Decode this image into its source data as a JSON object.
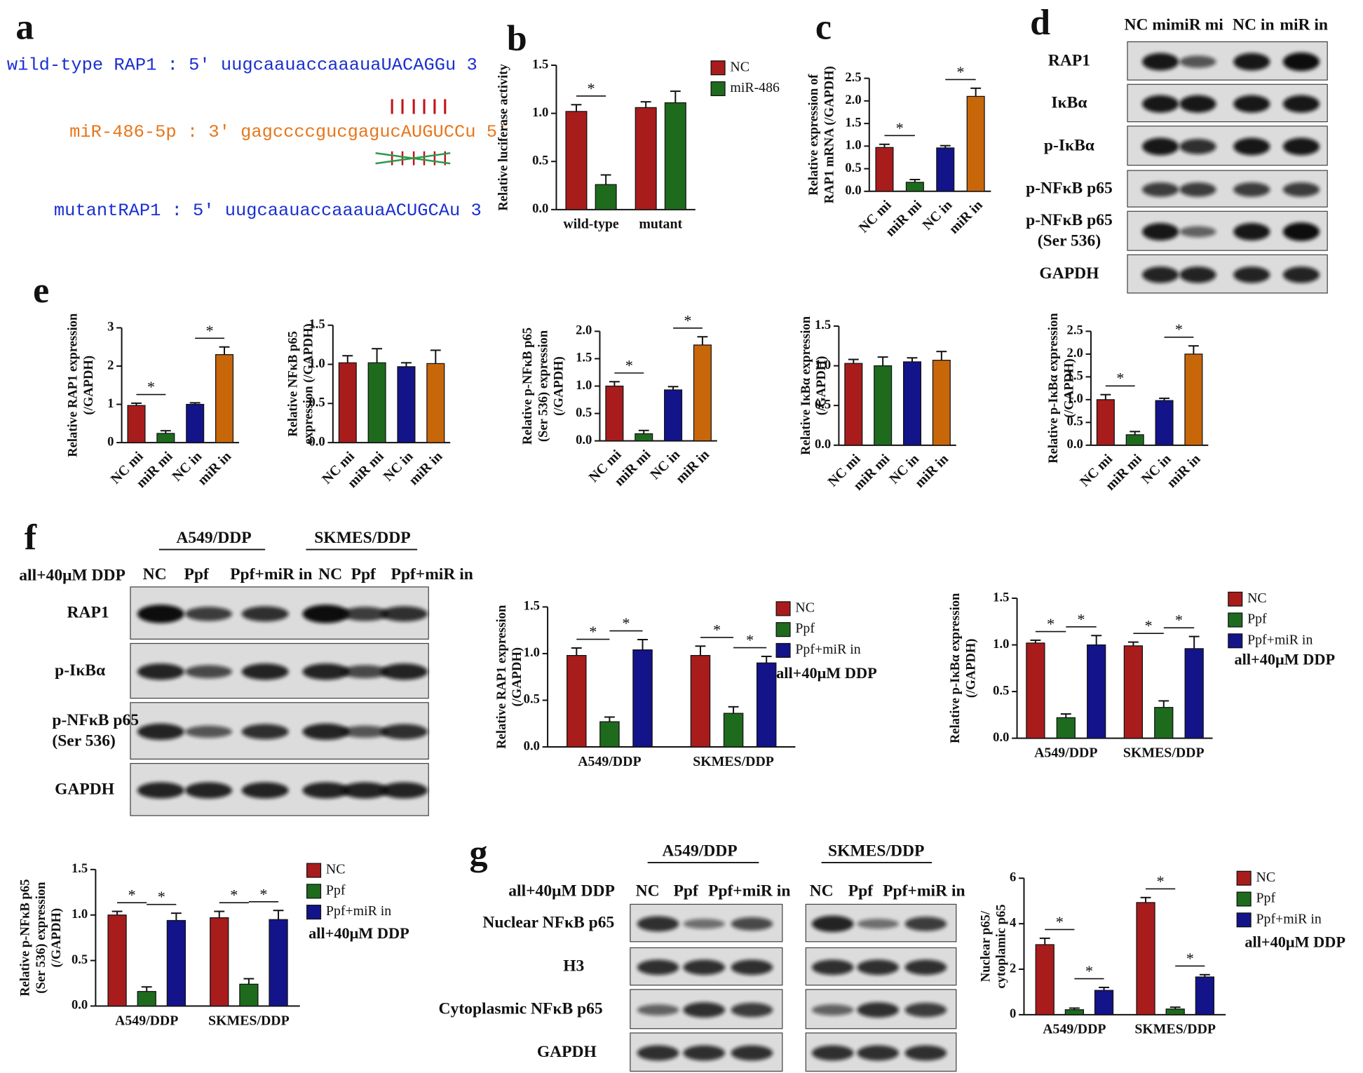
{
  "panel_labels": [
    "a",
    "b",
    "c",
    "d",
    "e",
    "f",
    "g"
  ],
  "sequences": [
    "wild-type RAP1 : 5' uugcaauaccaaauaUACAGGu 3",
    "miR-486-5p : 3' gagccccgucgagucAUGUCCu 5'",
    "mutantRAP1 : 5' uugcaauaccaaauaACUGCAu 3"
  ],
  "blots": [
    {
      "lanes": [
        "NC mi",
        "miR mi",
        "NC in",
        "miR in"
      ],
      "rows": [
        [
          "RAP1"
        ],
        [
          "IκBα"
        ],
        [
          "p-IκBα"
        ],
        [
          "p-NFκB p65"
        ],
        [
          "p-NFκB p65",
          "(Ser 536)"
        ],
        [
          "GAPDH"
        ]
      ]
    },
    {
      "groups": [
        "A549/DDP",
        "SKMES/DDP"
      ],
      "condition": "all+40μM DDP",
      "lanes": [
        "NC",
        "Ppf",
        "Ppf+miR in",
        "NC",
        "Ppf",
        "Ppf+miR in"
      ],
      "rows": [
        [
          "RAP1"
        ],
        [
          "p-IκBα"
        ],
        [
          "p-NFκB p65",
          "(Ser 536)"
        ],
        [
          "GAPDH"
        ]
      ]
    },
    {
      "groups": [
        "A549/DDP",
        "SKMES/DDP"
      ],
      "condition": "all+40μM DDP",
      "lanes": [
        "NC",
        "Ppf",
        "Ppf+miR in",
        "NC",
        "Ppf",
        "Ppf+miR in"
      ],
      "rows": [
        [
          "Nuclear NFκB p65"
        ],
        [
          "H3"
        ],
        [
          "Cytoplasmic NFκB p65"
        ],
        [
          "GAPDH"
        ]
      ]
    }
  ],
  "chart_data": [
    {
      "type": "bar",
      "categories": [
        "wild-type",
        "mutant"
      ],
      "series": [
        {
          "name": "NC",
          "color": "#a81c1c",
          "values": [
            1.02,
            1.06
          ],
          "errors": [
            0.07,
            0.06
          ]
        },
        {
          "name": "miR-486",
          "color": "#1e6b1e",
          "values": [
            0.26,
            1.11
          ],
          "errors": [
            0.1,
            0.12
          ]
        }
      ],
      "ylabel": [
        "Relative luciferase activity"
      ],
      "ylim": [
        0,
        1.5
      ],
      "yticks": [
        {
          "value": 0,
          "label": "0.0"
        },
        {
          "value": 0.5,
          "label": "0.5"
        },
        {
          "value": 1,
          "label": "1.0"
        },
        {
          "value": 1.5,
          "label": "1.5"
        }
      ],
      "significance": [
        "*"
      ]
    },
    {
      "type": "bar",
      "categories": [
        "NC mi",
        "miR mi",
        "NC in",
        "miR in"
      ],
      "values": [
        0.97,
        0.2,
        0.96,
        2.1
      ],
      "errors": [
        0.07,
        0.06,
        0.05,
        0.18
      ],
      "colors": [
        "#a81c1c",
        "#1e6b1e",
        "#13138a",
        "#c8670a"
      ],
      "ylabel": [
        "Relative expression of",
        "RAP1 mRNA (/GAPDH)"
      ],
      "ylim": [
        0,
        2.5
      ],
      "yticks": [
        {
          "value": 0,
          "label": "0.0"
        },
        {
          "value": 0.5,
          "label": "0.5"
        },
        {
          "value": 1,
          "label": "1.0"
        },
        {
          "value": 1.5,
          "label": "1.5"
        },
        {
          "value": 2,
          "label": "2.0"
        },
        {
          "value": 2.5,
          "label": "2.5"
        }
      ],
      "significance": [
        "*",
        "*"
      ]
    },
    {
      "type": "bar",
      "categories": [
        "NC mi",
        "miR mi",
        "NC in",
        "miR in"
      ],
      "values": [
        0.97,
        0.24,
        1.0,
        2.3
      ],
      "errors": [
        0.06,
        0.07,
        0.04,
        0.2
      ],
      "colors": [
        "#a81c1c",
        "#1e6b1e",
        "#13138a",
        "#c8670a"
      ],
      "ylabel": [
        "Relative RAP1 expression",
        "(/GAPDH)"
      ],
      "ylim": [
        0,
        3
      ],
      "yticks": [
        0,
        1,
        2,
        3
      ],
      "significance": [
        "*",
        "*"
      ]
    },
    {
      "type": "bar",
      "categories": [
        "NC mi",
        "miR mi",
        "NC in",
        "miR in"
      ],
      "values": [
        1.02,
        1.02,
        0.97,
        1.01
      ],
      "errors": [
        0.09,
        0.18,
        0.05,
        0.17
      ],
      "colors": [
        "#a81c1c",
        "#1e6b1e",
        "#13138a",
        "#c8670a"
      ],
      "ylabel": [
        "Relative NFκB p65",
        "expression (/GAPDH)"
      ],
      "ylim": [
        0,
        1.5
      ],
      "yticks": [
        {
          "value": 0,
          "label": "0.0"
        },
        {
          "value": 0.5,
          "label": "0.5"
        },
        {
          "value": 1,
          "label": "1.0"
        },
        {
          "value": 1.5,
          "label": "1.5"
        }
      ]
    },
    {
      "type": "bar",
      "categories": [
        "NC mi",
        "miR mi",
        "NC in",
        "miR in"
      ],
      "values": [
        1.0,
        0.13,
        0.93,
        1.75
      ],
      "errors": [
        0.08,
        0.06,
        0.06,
        0.15
      ],
      "colors": [
        "#a81c1c",
        "#1e6b1e",
        "#13138a",
        "#c8670a"
      ],
      "ylabel": [
        "Relative p-NFκB p65",
        "(Ser 536) expression",
        "(/GAPDH)"
      ],
      "ylim": [
        0,
        2
      ],
      "yticks": [
        {
          "value": 0,
          "label": "0.0"
        },
        {
          "value": 0.5,
          "label": "0.5"
        },
        {
          "value": 1,
          "label": "1.0"
        },
        {
          "value": 1.5,
          "label": "1.5"
        },
        {
          "value": 2,
          "label": "2.0"
        }
      ],
      "significance": [
        "*",
        "*"
      ]
    },
    {
      "type": "bar",
      "categories": [
        "NC mi",
        "miR mi",
        "NC in",
        "miR in"
      ],
      "values": [
        1.03,
        1.0,
        1.05,
        1.07
      ],
      "errors": [
        0.05,
        0.11,
        0.05,
        0.11
      ],
      "colors": [
        "#a81c1c",
        "#1e6b1e",
        "#13138a",
        "#c8670a"
      ],
      "ylabel": [
        "Relative IκBα expression",
        "(/GAPDH)"
      ],
      "ylim": [
        0,
        1.5
      ],
      "yticks": [
        {
          "value": 0,
          "label": "0.0"
        },
        {
          "value": 0.5,
          "label": "0.5"
        },
        {
          "value": 1,
          "label": "1.0"
        },
        {
          "value": 1.5,
          "label": "1.5"
        }
      ]
    },
    {
      "type": "bar",
      "categories": [
        "NC mi",
        "miR mi",
        "NC in",
        "miR in"
      ],
      "values": [
        1.0,
        0.23,
        0.98,
        2.0
      ],
      "errors": [
        0.11,
        0.07,
        0.05,
        0.18
      ],
      "colors": [
        "#a81c1c",
        "#1e6b1e",
        "#13138a",
        "#c8670a"
      ],
      "ylabel": [
        "Relative p-IκBα expression",
        "(/GAPDH)"
      ],
      "ylim": [
        0,
        2.5
      ],
      "yticks": [
        {
          "value": 0,
          "label": "0.0"
        },
        {
          "value": 0.5,
          "label": "0.5"
        },
        {
          "value": 1,
          "label": "1.0"
        },
        {
          "value": 1.5,
          "label": "1.5"
        },
        {
          "value": 2,
          "label": "2.0"
        },
        {
          "value": 2.5,
          "label": "2.5"
        }
      ],
      "significance": [
        "*",
        "*"
      ]
    },
    {
      "type": "bar",
      "categories": [
        "A549/DDP",
        "SKMES/DDP"
      ],
      "series": [
        {
          "name": "NC",
          "color": "#a81c1c",
          "values": [
            0.98,
            0.98
          ],
          "errors": [
            0.08,
            0.1
          ]
        },
        {
          "name": "Ppf",
          "color": "#1e6b1e",
          "values": [
            0.27,
            0.36
          ],
          "errors": [
            0.05,
            0.07
          ]
        },
        {
          "name": "Ppf+miR in",
          "color": "#13138a",
          "values": [
            1.04,
            0.9
          ],
          "errors": [
            0.11,
            0.07
          ]
        }
      ],
      "ylabel": [
        "Relative RAP1 expression",
        "(/GAPDH)"
      ],
      "note": "all+40μM DDP",
      "ylim": [
        0,
        1.5
      ],
      "yticks": [
        {
          "value": 0,
          "label": "0.0"
        },
        {
          "value": 0.5,
          "label": "0.5"
        },
        {
          "value": 1,
          "label": "1.0"
        },
        {
          "value": 1.5,
          "label": "1.5"
        }
      ],
      "significance": [
        "*",
        "*",
        "*",
        "*"
      ]
    },
    {
      "type": "bar",
      "categories": [
        "A549/DDP",
        "SKMES/DDP"
      ],
      "series": [
        {
          "name": "NC",
          "color": "#a81c1c",
          "values": [
            1.02,
            0.99
          ],
          "errors": [
            0.03,
            0.04
          ]
        },
        {
          "name": "Ppf",
          "color": "#1e6b1e",
          "values": [
            0.22,
            0.33
          ],
          "errors": [
            0.04,
            0.07
          ]
        },
        {
          "name": "Ppf+miR in",
          "color": "#13138a",
          "values": [
            1.0,
            0.96
          ],
          "errors": [
            0.1,
            0.13
          ]
        }
      ],
      "ylabel": [
        "Relative  p-IκBα expression",
        "(/GAPDH)"
      ],
      "note": "all+40μM DDP",
      "ylim": [
        0,
        1.5
      ],
      "yticks": [
        {
          "value": 0,
          "label": "0.0"
        },
        {
          "value": 0.5,
          "label": "0.5"
        },
        {
          "value": 1,
          "label": "1.0"
        },
        {
          "value": 1.5,
          "label": "1.5"
        }
      ],
      "significance": [
        "*",
        "*",
        "*",
        "*"
      ]
    },
    {
      "type": "bar",
      "categories": [
        "A549/DDP",
        "SKMES/DDP"
      ],
      "series": [
        {
          "name": "NC",
          "color": "#a81c1c",
          "values": [
            1.0,
            0.97
          ],
          "errors": [
            0.04,
            0.07
          ]
        },
        {
          "name": "Ppf",
          "color": "#1e6b1e",
          "values": [
            0.16,
            0.24
          ],
          "errors": [
            0.05,
            0.06
          ]
        },
        {
          "name": "Ppf+miR in",
          "color": "#13138a",
          "values": [
            0.94,
            0.95
          ],
          "errors": [
            0.08,
            0.1
          ]
        }
      ],
      "ylabel": [
        "Relative p-NFκB p65",
        "(Ser 536) expression",
        "(/GAPDH)"
      ],
      "note": "all+40μM DDP",
      "ylim": [
        0,
        1.5
      ],
      "yticks": [
        {
          "value": 0,
          "label": "0.0"
        },
        {
          "value": 0.5,
          "label": "0.5"
        },
        {
          "value": 1,
          "label": "1.0"
        },
        {
          "value": 1.5,
          "label": "1.5"
        }
      ],
      "significance": [
        "*",
        "*",
        "*",
        "*"
      ]
    },
    {
      "type": "bar",
      "categories": [
        "A549/DDP",
        "SKMES/DDP"
      ],
      "series": [
        {
          "name": "NC",
          "color": "#a81c1c",
          "values": [
            3.08,
            4.93
          ],
          "errors": [
            0.28,
            0.22
          ]
        },
        {
          "name": "Ppf",
          "color": "#1e6b1e",
          "values": [
            0.22,
            0.25
          ],
          "errors": [
            0.07,
            0.08
          ]
        },
        {
          "name": "Ppf+miR in",
          "color": "#13138a",
          "values": [
            1.07,
            1.66
          ],
          "errors": [
            0.13,
            0.1
          ]
        }
      ],
      "ylabel": [
        "Nuclear p65/",
        "cytoplamic p65"
      ],
      "note": "all+40μM DDP",
      "ylim": [
        0,
        6
      ],
      "yticks": [
        0,
        2,
        4,
        6
      ],
      "significance": [
        "*",
        "*",
        "*",
        "*"
      ]
    }
  ]
}
